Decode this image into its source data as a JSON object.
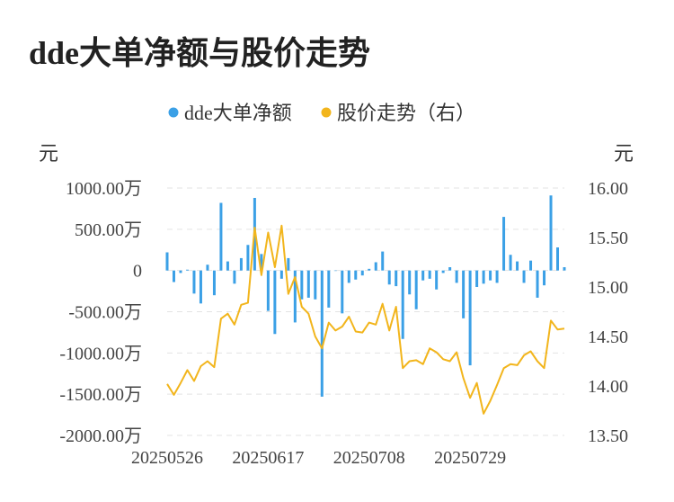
{
  "title": "dde大单净额与股价走势",
  "chart_data": {
    "type": "bar+line",
    "title": "dde大单净额与股价走势",
    "left_unit": "元",
    "right_unit": "元",
    "left_ticks": [
      "1000.00万",
      "500.00万",
      "0",
      "-500.00万",
      "-1000.00万",
      "-1500.00万",
      "-2000.00万"
    ],
    "left_tick_values": [
      1000,
      500,
      0,
      -500,
      -1000,
      -1500,
      -2000
    ],
    "right_ticks": [
      "16.00",
      "15.50",
      "15.00",
      "14.50",
      "14.00",
      "13.50"
    ],
    "right_tick_values": [
      16.0,
      15.5,
      15.0,
      14.5,
      14.0,
      13.5
    ],
    "ylim_left": [
      -2000,
      1000
    ],
    "ylim_right": [
      13.5,
      16.0
    ],
    "x_tick_labels": [
      "20250526",
      "20250617",
      "20250708",
      "20250729"
    ],
    "x_tick_index": [
      0,
      15,
      30,
      45
    ],
    "grid": true,
    "legend_position": "top",
    "colors": {
      "bar": "#3ba0e6",
      "line": "#f2b51c",
      "grid": "#e3e3e3"
    },
    "series": [
      {
        "name": "dde大单净额",
        "type": "bar",
        "axis": "left",
        "unit": "万元",
        "values": [
          220,
          -140,
          -30,
          10,
          -280,
          -400,
          70,
          -300,
          820,
          110,
          -160,
          150,
          310,
          880,
          200,
          -490,
          -770,
          -100,
          150,
          -630,
          -350,
          -330,
          -350,
          -1530,
          -450,
          0,
          -520,
          -150,
          -110,
          -60,
          20,
          100,
          230,
          -170,
          -190,
          -830,
          -290,
          -470,
          -120,
          -100,
          -230,
          -30,
          40,
          -150,
          -580,
          -1150,
          -200,
          -160,
          -120,
          -150,
          650,
          190,
          110,
          -150,
          120,
          -330,
          -180,
          910,
          280,
          40
        ],
        "visible_labels": []
      },
      {
        "name": "股价走势（右）",
        "type": "line",
        "axis": "right",
        "unit": "元",
        "values": [
          14.02,
          13.91,
          14.03,
          14.16,
          14.05,
          14.2,
          14.25,
          14.19,
          14.68,
          14.73,
          14.62,
          14.82,
          14.84,
          15.6,
          15.12,
          15.55,
          15.2,
          15.62,
          14.93,
          15.1,
          14.8,
          14.73,
          14.5,
          14.38,
          14.64,
          14.56,
          14.6,
          14.7,
          14.55,
          14.54,
          14.64,
          14.62,
          14.83,
          14.56,
          14.8,
          14.18,
          14.25,
          14.26,
          14.22,
          14.38,
          14.34,
          14.27,
          14.25,
          14.34,
          14.08,
          13.88,
          14.03,
          13.72,
          13.85,
          14.01,
          14.18,
          14.22,
          14.21,
          14.31,
          14.35,
          14.25,
          14.18,
          14.66,
          14.57,
          14.58
        ],
        "visible_labels": []
      }
    ]
  }
}
